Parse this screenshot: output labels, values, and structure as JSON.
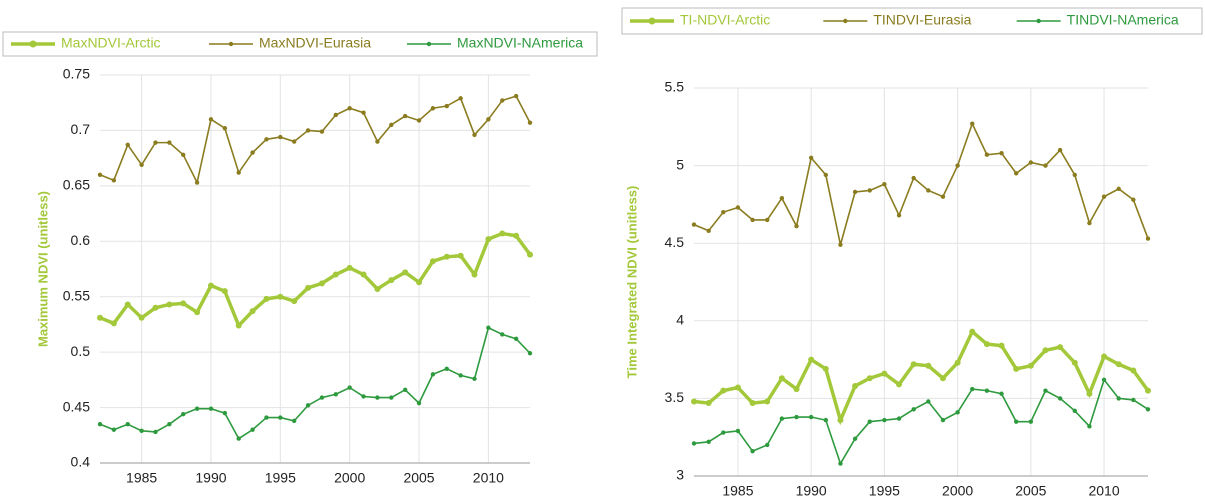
{
  "chart_data": [
    {
      "type": "line",
      "y_label": "Maximum NDVI (unitless)",
      "x": [
        1982,
        1983,
        1984,
        1985,
        1986,
        1987,
        1988,
        1989,
        1990,
        1991,
        1992,
        1993,
        1994,
        1995,
        1996,
        1997,
        1998,
        1999,
        2000,
        2001,
        2002,
        2003,
        2004,
        2005,
        2006,
        2007,
        2008,
        2009,
        2010,
        2011,
        2012,
        2013
      ],
      "xlim": [
        1982,
        2013
      ],
      "xticks": [
        1985,
        1990,
        1995,
        2000,
        2005,
        2010
      ],
      "ylim": [
        0.4,
        0.75
      ],
      "yticks": [
        0.4,
        0.45,
        0.5,
        0.55,
        0.6,
        0.65,
        0.7,
        0.75
      ],
      "grid": true,
      "legend": "top",
      "series": [
        {
          "name": "MaxNDVI-Arctic",
          "color": "#a3c83a",
          "values": [
            0.531,
            0.526,
            0.543,
            0.531,
            0.54,
            0.543,
            0.544,
            0.536,
            0.56,
            0.555,
            0.524,
            0.537,
            0.548,
            0.55,
            0.546,
            0.558,
            0.562,
            0.57,
            0.576,
            0.57,
            0.557,
            0.565,
            0.572,
            0.563,
            0.582,
            0.586,
            0.587,
            0.57,
            0.602,
            0.607,
            0.605,
            0.588
          ]
        },
        {
          "name": "MaxNDVI-Eurasia",
          "color": "#8a7c1f",
          "values": [
            0.66,
            0.655,
            0.687,
            0.669,
            0.689,
            0.689,
            0.678,
            0.653,
            0.71,
            0.702,
            0.662,
            0.68,
            0.692,
            0.694,
            0.69,
            0.7,
            0.699,
            0.714,
            0.72,
            0.716,
            0.69,
            0.705,
            0.713,
            0.709,
            0.72,
            0.722,
            0.729,
            0.696,
            0.71,
            0.727,
            0.731,
            0.707
          ]
        },
        {
          "name": "MaxNDVI-NAmerica",
          "color": "#2e9a3e",
          "values": [
            0.435,
            0.43,
            0.435,
            0.429,
            0.428,
            0.435,
            0.444,
            0.449,
            0.449,
            0.445,
            0.422,
            0.43,
            0.441,
            0.441,
            0.438,
            0.452,
            0.459,
            0.462,
            0.468,
            0.46,
            0.459,
            0.459,
            0.466,
            0.454,
            0.48,
            0.485,
            0.479,
            0.476,
            0.522,
            0.516,
            0.512,
            0.499
          ]
        }
      ]
    },
    {
      "type": "line",
      "y_label": "Time Integrated NDVI (unitless)",
      "x": [
        1982,
        1983,
        1984,
        1985,
        1986,
        1987,
        1988,
        1989,
        1990,
        1991,
        1992,
        1993,
        1994,
        1995,
        1996,
        1997,
        1998,
        1999,
        2000,
        2001,
        2002,
        2003,
        2004,
        2005,
        2006,
        2007,
        2008,
        2009,
        2010,
        2011,
        2012,
        2013
      ],
      "xlim": [
        1982,
        2013
      ],
      "xticks": [
        1985,
        1990,
        1995,
        2000,
        2005,
        2010
      ],
      "ylim": [
        3,
        5.5
      ],
      "yticks": [
        3,
        3.5,
        4,
        4.5,
        5,
        5.5
      ],
      "grid": true,
      "legend": "top",
      "series": [
        {
          "name": "TI-NDVI-Arctic",
          "color": "#a3c83a",
          "values": [
            3.48,
            3.47,
            3.55,
            3.57,
            3.47,
            3.48,
            3.63,
            3.56,
            3.75,
            3.69,
            3.36,
            3.58,
            3.63,
            3.66,
            3.59,
            3.72,
            3.71,
            3.63,
            3.73,
            3.93,
            3.85,
            3.84,
            3.69,
            3.71,
            3.81,
            3.83,
            3.73,
            3.53,
            3.77,
            3.72,
            3.68,
            3.55
          ]
        },
        {
          "name": "TINDVI-Eurasia",
          "color": "#8a7c1f",
          "values": [
            4.62,
            4.58,
            4.7,
            4.73,
            4.65,
            4.65,
            4.79,
            4.61,
            5.05,
            4.94,
            4.49,
            4.83,
            4.84,
            4.88,
            4.68,
            4.92,
            4.84,
            4.8,
            5.0,
            5.27,
            5.07,
            5.08,
            4.95,
            5.02,
            5.0,
            5.1,
            4.94,
            4.63,
            4.8,
            4.85,
            4.78,
            4.53
          ]
        },
        {
          "name": "TINDVI-NAmerica",
          "color": "#2e9a3e",
          "values": [
            3.21,
            3.22,
            3.28,
            3.29,
            3.16,
            3.2,
            3.37,
            3.38,
            3.38,
            3.36,
            3.08,
            3.24,
            3.35,
            3.36,
            3.37,
            3.43,
            3.48,
            3.36,
            3.41,
            3.56,
            3.55,
            3.53,
            3.35,
            3.35,
            3.55,
            3.5,
            3.42,
            3.32,
            3.62,
            3.5,
            3.49,
            3.43
          ]
        }
      ]
    }
  ]
}
